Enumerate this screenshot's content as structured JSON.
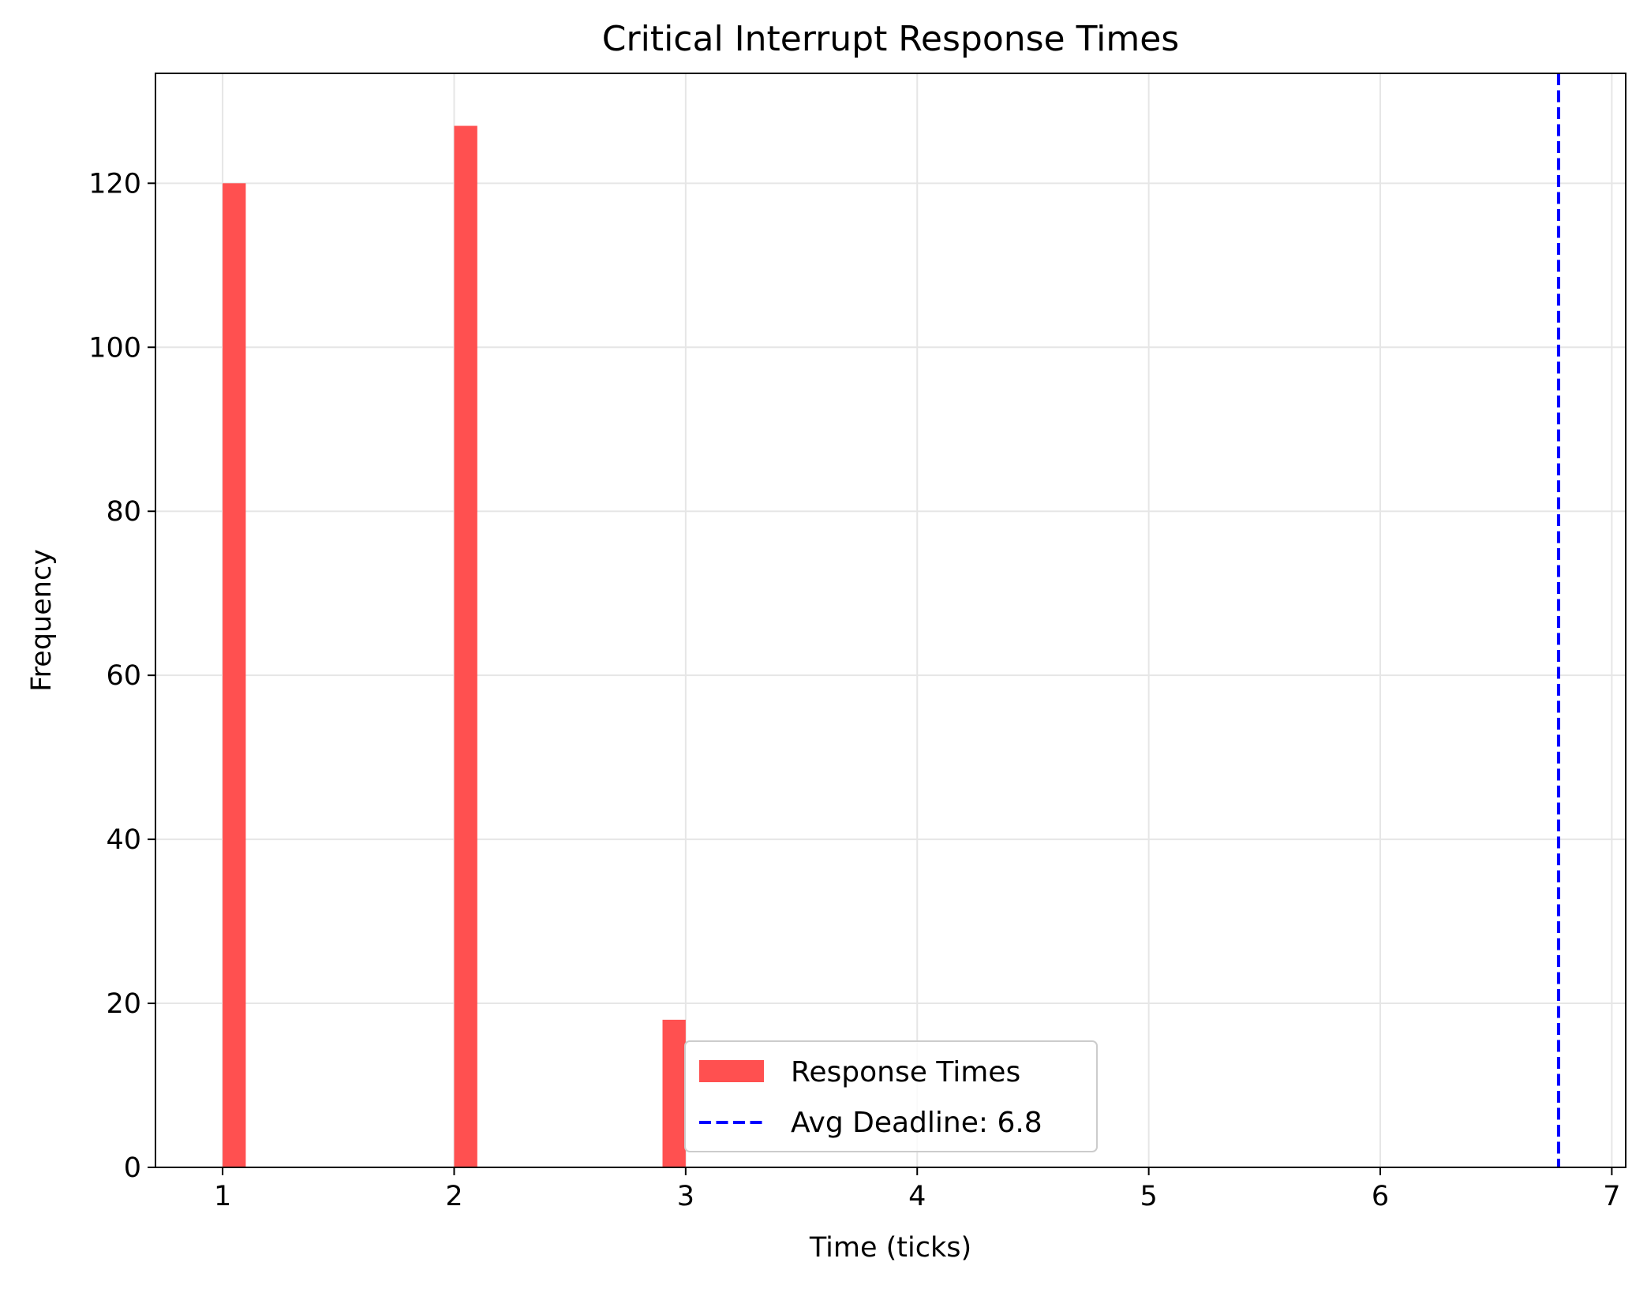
{
  "chart_data": {
    "type": "bar",
    "title": "Critical Interrupt Response Times",
    "xlabel": "Time (ticks)",
    "ylabel": "Frequency",
    "xlim": [
      0.71,
      7.06
    ],
    "ylim": [
      0,
      133.4
    ],
    "xticks": [
      1,
      2,
      3,
      4,
      5,
      6,
      7
    ],
    "yticks": [
      0,
      20,
      40,
      60,
      80,
      100,
      120
    ],
    "grid": true,
    "series": [
      {
        "name": "Response Times",
        "color": "#ff5050",
        "bars": [
          {
            "x_start": 1.0,
            "x_end": 1.1,
            "value": 120
          },
          {
            "x_start": 2.0,
            "x_end": 2.1,
            "value": 127
          },
          {
            "x_start": 2.9,
            "x_end": 3.0,
            "value": 18
          }
        ]
      }
    ],
    "reference_lines": [
      {
        "name": "Avg Deadline: 6.8",
        "x": 6.77,
        "color": "#0000ff",
        "style": "dashed"
      }
    ],
    "legend": {
      "placement": "lower-center",
      "entries": [
        "Response Times",
        "Avg Deadline: 6.8"
      ]
    }
  }
}
